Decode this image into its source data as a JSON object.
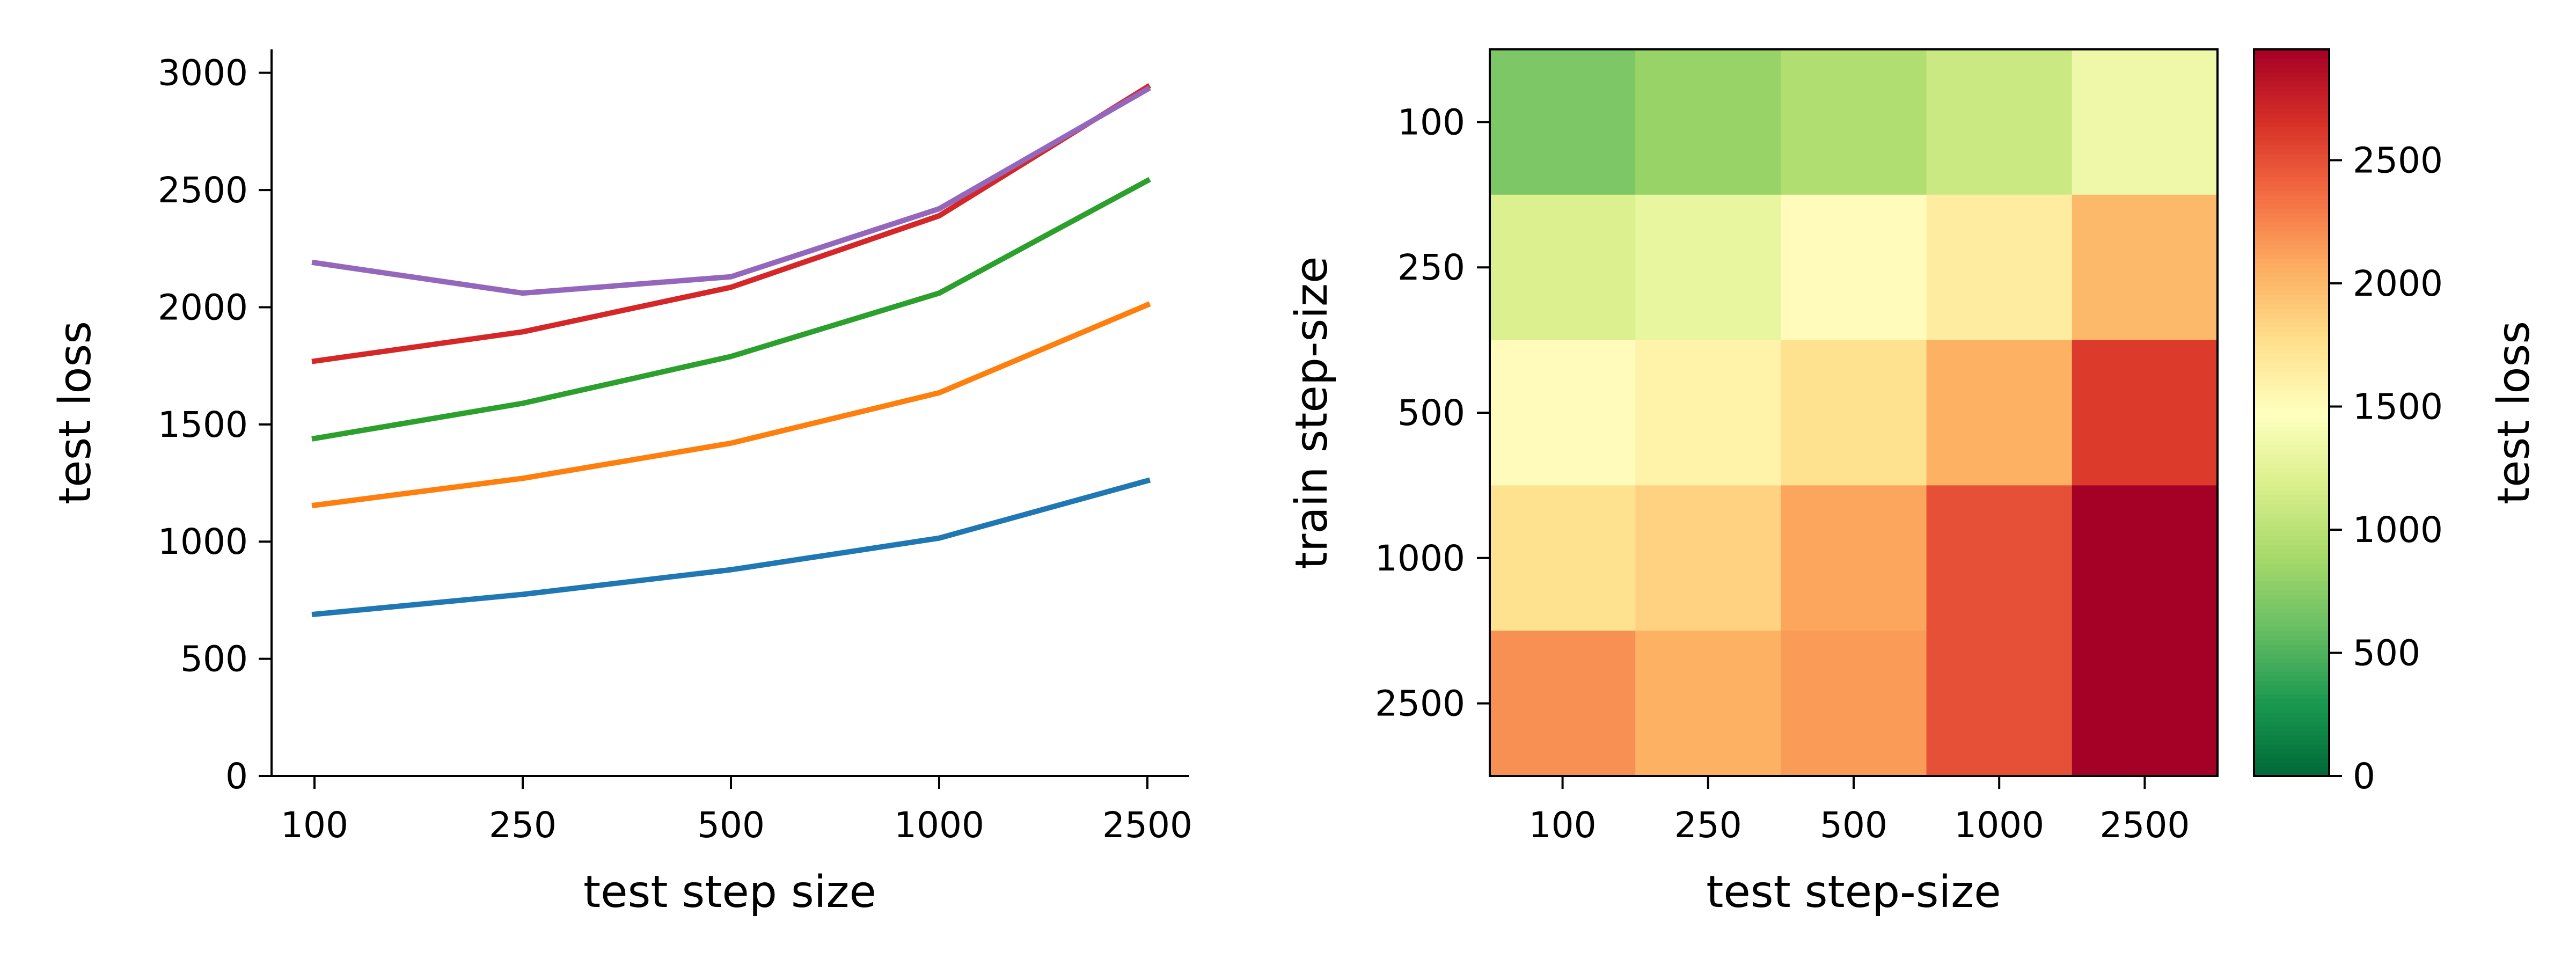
{
  "chart_data": [
    {
      "type": "line",
      "xlabel": "test step size",
      "ylabel": "test loss",
      "categories": [
        "100",
        "250",
        "500",
        "1000",
        "2500"
      ],
      "yticks": [
        "0",
        "500",
        "1000",
        "1500",
        "2000",
        "2500",
        "3000"
      ],
      "ylim": [
        0,
        3100
      ],
      "grid": false,
      "legend": "none",
      "series": [
        {
          "color": "#1f77b4",
          "values": [
            690,
            775,
            880,
            1015,
            1260
          ]
        },
        {
          "color": "#ff7f0e",
          "values": [
            1155,
            1270,
            1420,
            1635,
            2010
          ]
        },
        {
          "color": "#2ca02c",
          "values": [
            1440,
            1590,
            1790,
            2060,
            2540
          ]
        },
        {
          "color": "#d62728",
          "values": [
            1770,
            1895,
            2085,
            2390,
            2940
          ]
        },
        {
          "color": "#9467bd",
          "values": [
            2190,
            2060,
            2130,
            2420,
            2930
          ]
        }
      ]
    },
    {
      "type": "heatmap",
      "xlabel": "test step-size",
      "ylabel": "train step-size",
      "x": [
        "100",
        "250",
        "500",
        "1000",
        "2500"
      ],
      "y": [
        "100",
        "250",
        "500",
        "1000",
        "2500"
      ],
      "values": [
        [
          700,
          820,
          950,
          1100,
          1350
        ],
        [
          1200,
          1300,
          1500,
          1650,
          2000
        ],
        [
          1500,
          1600,
          1750,
          2050,
          2600
        ],
        [
          1750,
          1850,
          2100,
          2500,
          2950
        ],
        [
          2200,
          2050,
          2150,
          2500,
          2950
        ]
      ],
      "vmin": 0,
      "vmax": 2950,
      "colormap": "RdYlGn_r",
      "colorbar": {
        "label": "test loss",
        "ticks": [
          "0",
          "500",
          "1000",
          "1500",
          "2000",
          "2500"
        ]
      }
    }
  ]
}
